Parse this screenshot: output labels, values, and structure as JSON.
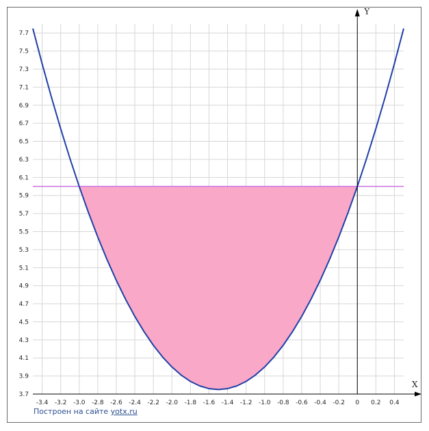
{
  "chart_data": {
    "type": "line",
    "xlabel": "X",
    "ylabel": "Y",
    "xlim": [
      -3.5,
      0.5
    ],
    "ylim": [
      3.7,
      7.8
    ],
    "x_ticks": [
      -3.4,
      -3.2,
      -3.0,
      -2.8,
      -2.6,
      -2.4,
      -2.2,
      -2.0,
      -1.8,
      -1.6,
      -1.4,
      -1.2,
      -1.0,
      -0.8,
      -0.6,
      -0.4,
      -0.2,
      0,
      0.2,
      0.4
    ],
    "x_tick_labels": [
      "-3.4",
      "-3.2",
      "-3.0",
      "-2.8",
      "-2.6",
      "-2.4",
      "-2.2",
      "-2.0",
      "-1.8",
      "-1.6",
      "-1.4",
      "-1.2",
      "-1.0",
      "-0.8",
      "-0.6",
      "-0.4",
      "-0.2",
      "0",
      "0.2",
      "0.4"
    ],
    "y_ticks": [
      3.7,
      3.9,
      4.1,
      4.3,
      4.5,
      4.7,
      4.9,
      5.1,
      5.3,
      5.5,
      5.7,
      5.9,
      6.1,
      6.3,
      6.5,
      6.7,
      6.9,
      7.1,
      7.3,
      7.5,
      7.7
    ],
    "y_tick_labels": [
      "3.7",
      "3.9",
      "4.1",
      "4.3",
      "4.5",
      "4.7",
      "4.9",
      "5.1",
      "5.3",
      "5.5",
      "5.7",
      "5.9",
      "6.1",
      "6.3",
      "6.5",
      "6.7",
      "6.9",
      "7.1",
      "7.3",
      "7.5",
      "7.7"
    ],
    "grid": true,
    "series": [
      {
        "kind": "curve",
        "color": "#1f3fa6",
        "x": [
          -3.5,
          -3.4,
          -3.3,
          -3.2,
          -3.1,
          -3.0,
          -2.9,
          -2.8,
          -2.7,
          -2.6,
          -2.5,
          -2.4,
          -2.3,
          -2.2,
          -2.1,
          -2.0,
          -1.9,
          -1.8,
          -1.7,
          -1.6,
          -1.5,
          -1.4,
          -1.3,
          -1.2,
          -1.1,
          -1.0,
          -0.9,
          -0.8,
          -0.7,
          -0.6,
          -0.5,
          -0.4,
          -0.3,
          -0.2,
          -0.1,
          0.0,
          0.1,
          0.2,
          0.3,
          0.4,
          0.5
        ],
        "y": [
          7.75,
          7.36,
          6.99,
          6.64,
          6.31,
          6.0,
          5.71,
          5.44,
          5.19,
          4.96,
          4.75,
          4.56,
          4.39,
          4.24,
          4.11,
          4.0,
          3.91,
          3.84,
          3.79,
          3.76,
          3.75,
          3.76,
          3.79,
          3.84,
          3.91,
          4.0,
          4.11,
          4.24,
          4.39,
          4.56,
          4.75,
          4.96,
          5.19,
          5.44,
          5.71,
          6.0,
          6.31,
          6.64,
          6.99,
          7.36,
          7.75
        ]
      },
      {
        "kind": "horizontal-line",
        "color": "#c86ee0",
        "x": [
          -3.5,
          0.5
        ],
        "y": [
          6.0,
          6.0
        ]
      }
    ],
    "shaded_region": {
      "color": "#f9a8c8",
      "x_from": -3.0,
      "x_to": 0.0,
      "upper": 6.0
    }
  },
  "footer": {
    "credit_prefix": "Построен на сайте ",
    "credit_link": "yotx.ru"
  }
}
